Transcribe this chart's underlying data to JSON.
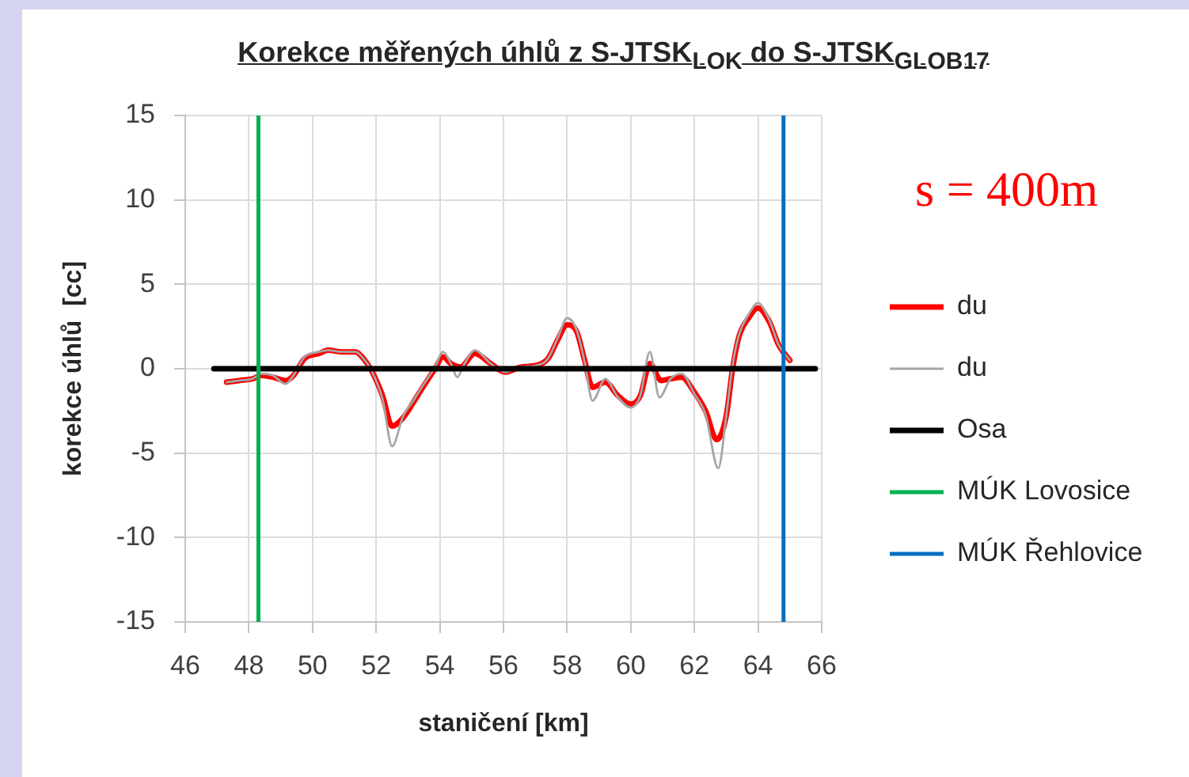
{
  "chart_data": {
    "type": "line",
    "title": "Korekce měřených úhlů z S-JTSK$_{LOK}$ do S-JTSK$_{GLOB17}$",
    "xlabel": "staničení [km]",
    "ylabel": "korekce úhlů  [cc]",
    "annotations": [
      "s = 400m"
    ],
    "xlim": [
      46,
      66
    ],
    "xticks": [
      46,
      48,
      50,
      52,
      54,
      56,
      58,
      60,
      62,
      64,
      66
    ],
    "ylim": [
      -15,
      15
    ],
    "yticks": [
      -15,
      -10,
      -5,
      0,
      5,
      10,
      15
    ],
    "grid": true,
    "legend": "right",
    "series": [
      {
        "name": "du",
        "color": "#ff0000",
        "x": [
          47.3,
          47.7,
          48.1,
          48.4,
          48.75,
          49.15,
          49.4,
          49.75,
          50.2,
          50.5,
          50.9,
          51.35,
          51.6,
          51.85,
          52.2,
          52.5,
          52.85,
          53.2,
          53.5,
          53.85,
          54.1,
          54.35,
          54.65,
          55.1,
          55.6,
          56.05,
          56.55,
          57.05,
          57.4,
          57.7,
          58.0,
          58.3,
          58.55,
          58.8,
          59.2,
          59.6,
          60.0,
          60.3,
          60.6,
          60.95,
          61.25,
          61.6,
          62.0,
          62.35,
          62.7,
          63.0,
          63.2,
          63.4,
          63.7,
          64.0,
          64.35,
          64.65,
          65.0
        ],
        "values": [
          -0.8,
          -0.7,
          -0.6,
          -0.4,
          -0.5,
          -0.7,
          -0.4,
          0.6,
          0.9,
          1.1,
          1.0,
          1.0,
          0.6,
          -0.1,
          -1.6,
          -3.4,
          -2.9,
          -1.9,
          -1.0,
          0.0,
          0.7,
          0.3,
          0.1,
          0.9,
          0.3,
          -0.2,
          0.1,
          0.2,
          0.6,
          1.7,
          2.6,
          2.2,
          0.5,
          -1.1,
          -0.8,
          -1.6,
          -2.1,
          -1.6,
          0.3,
          -0.7,
          -0.6,
          -0.5,
          -1.4,
          -2.5,
          -4.2,
          -2.8,
          0.0,
          1.9,
          3.0,
          3.6,
          2.8,
          1.4,
          0.5
        ]
      },
      {
        "name": "du",
        "color": "#a6a6a6",
        "x": [
          47.3,
          47.7,
          48.1,
          48.4,
          48.75,
          49.15,
          49.4,
          49.75,
          50.2,
          50.5,
          50.9,
          51.35,
          51.6,
          51.85,
          52.2,
          52.5,
          52.85,
          53.2,
          53.5,
          53.85,
          54.1,
          54.35,
          54.55,
          54.75,
          55.1,
          55.6,
          56.05,
          56.55,
          57.05,
          57.4,
          57.7,
          58.0,
          58.3,
          58.55,
          58.8,
          59.2,
          59.6,
          60.0,
          60.3,
          60.6,
          60.9,
          61.25,
          61.6,
          62.0,
          62.35,
          62.75,
          63.0,
          63.2,
          63.4,
          63.7,
          64.0,
          64.35,
          64.65,
          65.0
        ],
        "values": [
          -0.8,
          -0.7,
          -0.6,
          -0.3,
          -0.4,
          -0.9,
          -0.4,
          0.7,
          1.0,
          1.1,
          1.0,
          1.0,
          0.6,
          -0.1,
          -1.8,
          -4.6,
          -2.8,
          -1.8,
          -0.9,
          0.1,
          1.0,
          0.3,
          -0.5,
          0.2,
          1.1,
          0.3,
          -0.2,
          0.1,
          0.2,
          0.6,
          1.8,
          3.0,
          2.3,
          0.4,
          -1.9,
          -0.6,
          -1.7,
          -2.3,
          -1.6,
          1.0,
          -1.7,
          -0.6,
          -0.3,
          -1.5,
          -2.7,
          -5.9,
          -2.8,
          0.2,
          2.0,
          3.2,
          3.9,
          2.9,
          1.4,
          0.5
        ]
      },
      {
        "name": "Osa",
        "color": "#000000",
        "x": [
          46.9,
          65.8
        ],
        "values": [
          0,
          0
        ]
      },
      {
        "name": "MÚK Lovosice",
        "color": "#00b050",
        "x": [
          48.3,
          48.3
        ],
        "values": [
          -15,
          15
        ]
      },
      {
        "name": "MÚK Řehlovice",
        "color": "#0070c0",
        "x": [
          64.8,
          64.8
        ],
        "values": [
          -15,
          15
        ]
      }
    ]
  }
}
